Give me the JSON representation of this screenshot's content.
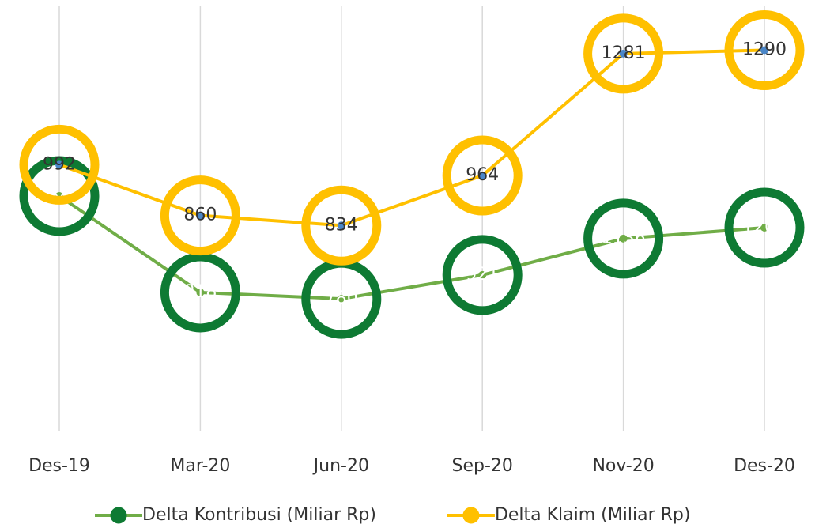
{
  "chart_data": {
    "type": "line",
    "categories": [
      "Des-19",
      "Mar-20",
      "Jun-20",
      "Sep-20",
      "Nov-20",
      "Des-20"
    ],
    "series": [
      {
        "name": "Delta Kontribusi (Miliar Rp)",
        "color": "#70ad47",
        "marker_color": "#0e7a33",
        "label_color": "#ffffff",
        "values": [
          1388,
          818,
          780,
          921,
          1136,
          1201
        ]
      },
      {
        "name": "Delta Klaim (Miliar Rp)",
        "color": "#ffc000",
        "marker_color": "#ffc000",
        "label_color": "#333333",
        "axis": "y2",
        "values": [
          992,
          860,
          834,
          964,
          1281,
          1290
        ]
      }
    ],
    "ylim": [
      0,
      2500
    ],
    "y2lim": [
      300,
      1400
    ],
    "grid": true
  }
}
